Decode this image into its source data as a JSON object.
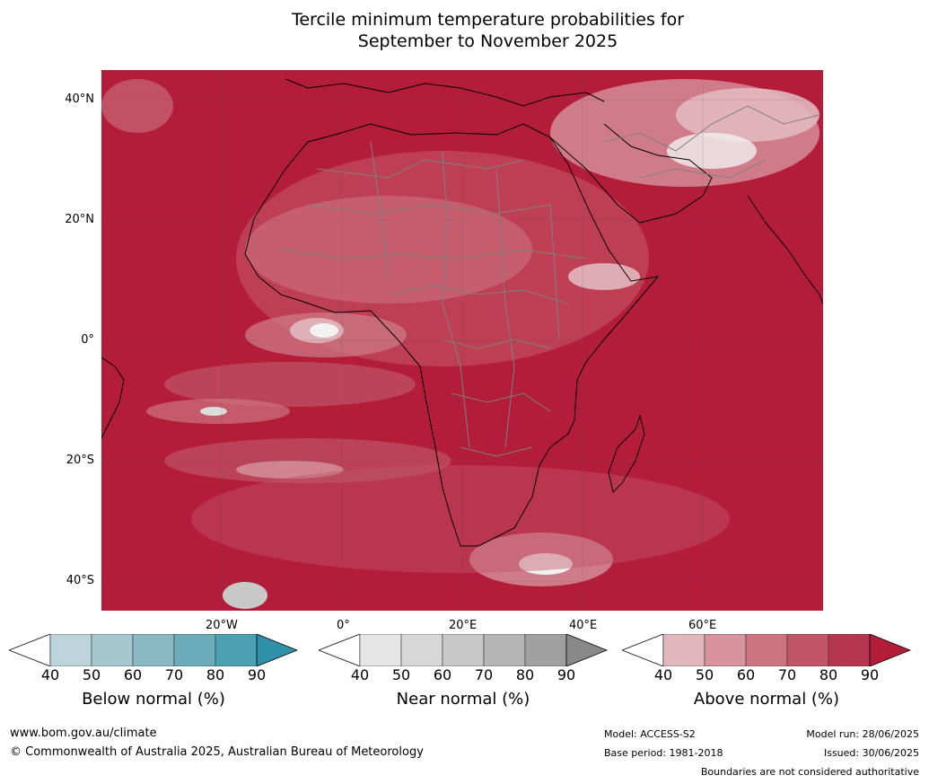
{
  "title_line1": "Tercile minimum temperature probabilities for",
  "title_line2": "September to November 2025",
  "map": {
    "lat_labels": [
      "40°N",
      "20°N",
      "0°",
      "20°S",
      "40°S"
    ],
    "lon_labels": [
      "20°W",
      "0°",
      "20°E",
      "40°E",
      "60°E"
    ],
    "background_color": "#b31d3a",
    "land_border_color": "#000000",
    "country_border_color": "#808080"
  },
  "colorbars": [
    {
      "title": "Below normal (%)",
      "ticks": [
        "40",
        "50",
        "60",
        "70",
        "80",
        "90"
      ],
      "colors": [
        "#ffffff",
        "#bcd4da",
        "#a6c7ce",
        "#8ab8c3",
        "#6cabb9",
        "#4ca0b1",
        "#2f90aa"
      ]
    },
    {
      "title": "Near normal (%)",
      "ticks": [
        "40",
        "50",
        "60",
        "70",
        "80",
        "90"
      ],
      "colors": [
        "#ffffff",
        "#e5e5e5",
        "#d7d7d7",
        "#c8c8c8",
        "#b5b5b5",
        "#a0a0a0",
        "#888888"
      ]
    },
    {
      "title": "Above normal (%)",
      "ticks": [
        "40",
        "50",
        "60",
        "70",
        "80",
        "90"
      ],
      "colors": [
        "#ffffff",
        "#e2b8bf",
        "#d7949e",
        "#cc7580",
        "#c05668",
        "#b63650",
        "#b31d3a"
      ]
    }
  ],
  "footer": {
    "url": "www.bom.gov.au/climate",
    "copyright": "© Commonwealth of Australia 2025, Australian Bureau of Meteorology",
    "model": "Model: ACCESS-S2",
    "base_period": "Base period: 1981-2018",
    "model_run": "Model run: 28/06/2025",
    "issued": "Issued: 30/06/2025",
    "disclaimer": "Boundaries are not considered authoritative"
  }
}
